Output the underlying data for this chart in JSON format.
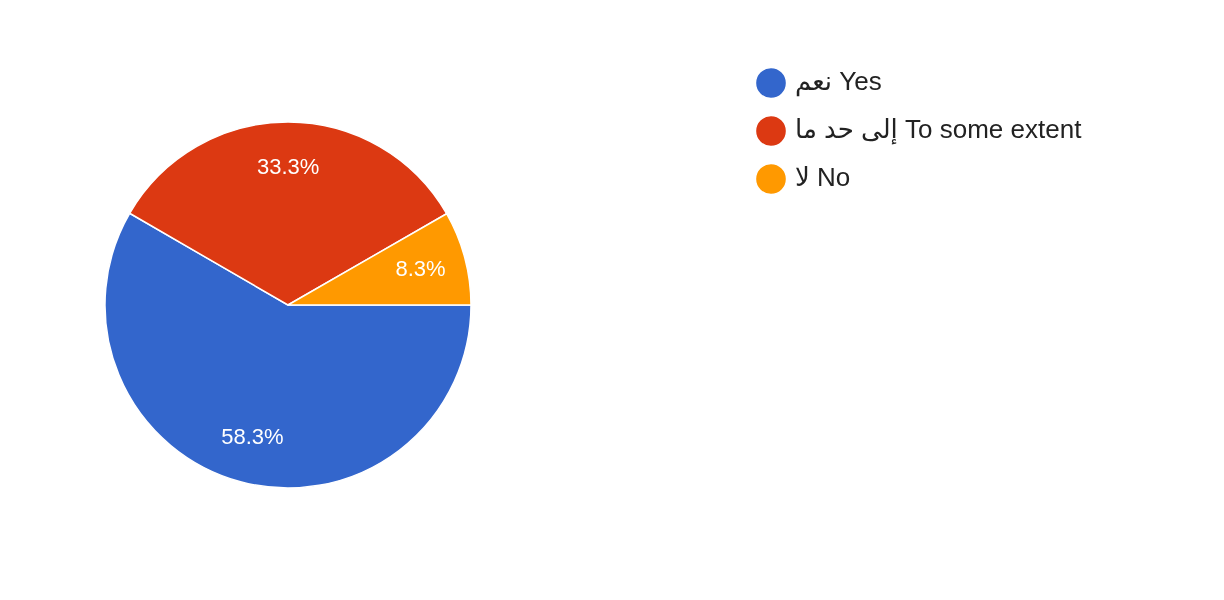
{
  "chart_data": {
    "type": "pie",
    "categories": [
      "نعم Yes",
      "إلى حد ما To some extent",
      "لا No"
    ],
    "values": [
      58.3,
      33.3,
      8.3
    ],
    "colors": [
      "#3366cc",
      "#dc3912",
      "#ff9900"
    ],
    "value_labels": [
      "58.3%",
      "33.3%",
      "8.3%"
    ],
    "legend": "top right"
  }
}
